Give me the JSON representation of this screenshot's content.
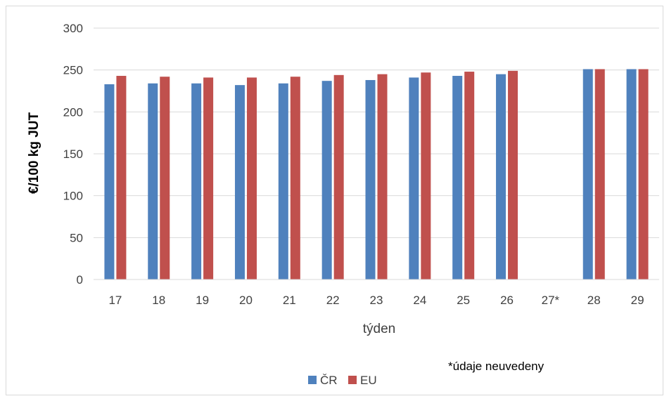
{
  "chart_data": {
    "type": "bar",
    "categories": [
      "17",
      "18",
      "19",
      "20",
      "21",
      "22",
      "23",
      "24",
      "25",
      "26",
      "27*",
      "28",
      "29"
    ],
    "series": [
      {
        "name": "ČR",
        "color": "#4f81bd",
        "values": [
          233,
          234,
          234,
          232,
          234,
          237,
          238,
          241,
          243,
          245,
          null,
          251,
          251
        ]
      },
      {
        "name": "EU",
        "color": "#c0504d",
        "values": [
          243,
          242,
          241,
          241,
          242,
          244,
          245,
          247,
          248,
          249,
          null,
          251,
          251
        ]
      }
    ],
    "title": "",
    "xlabel": "týden",
    "ylabel": "€/100 kg JUT",
    "ylim": [
      0,
      300
    ],
    "yticks": [
      "0",
      "50",
      "100",
      "150",
      "200",
      "250",
      "300"
    ],
    "grid": true,
    "legend_position": "bottom",
    "annotation": "*údaje neuvedeny"
  }
}
